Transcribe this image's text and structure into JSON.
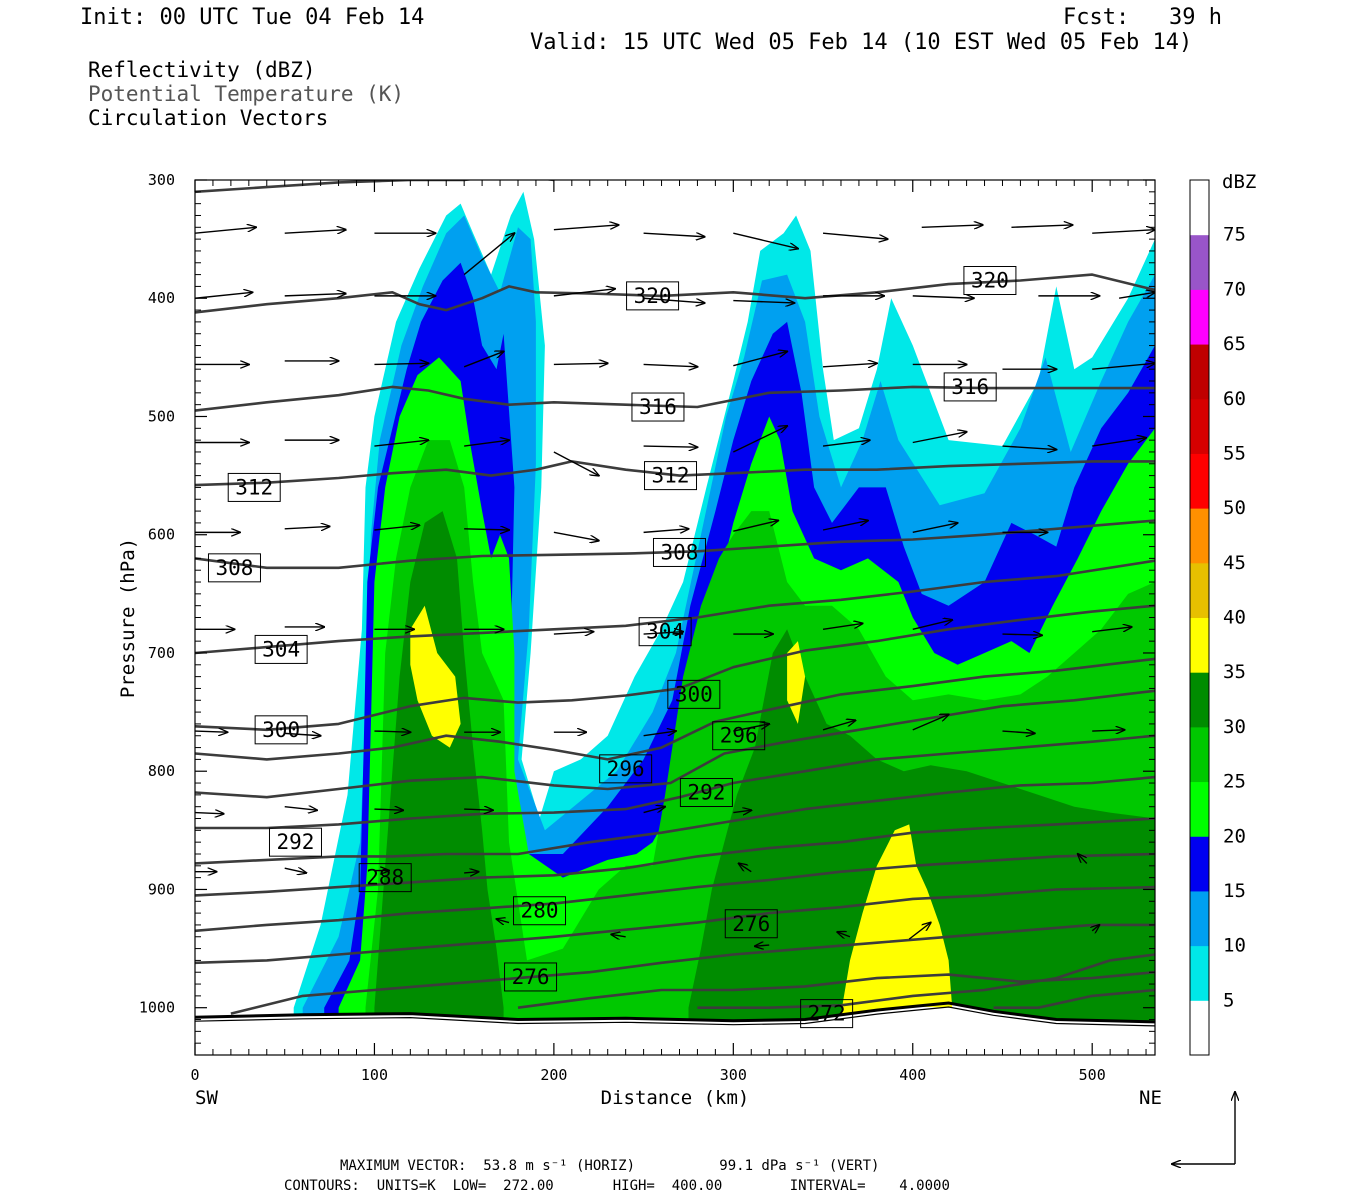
{
  "header": {
    "init": "Init: 00 UTC Tue 04 Feb 14",
    "fcst": "Fcst:   39 h",
    "valid": "Valid: 15 UTC Wed 05 Feb 14 (10 EST Wed 05 Feb 14)"
  },
  "legend": {
    "line1": "Reflectivity (dBZ)",
    "line2": "Potential Temperature (K)",
    "line3": "Circulation Vectors"
  },
  "footer": {
    "max_vector": "MAXIMUM VECTOR:  53.8 m s⁻¹ (HORIZ)          99.1 dPa s⁻¹ (VERT)",
    "contours": "CONTOURS:  UNITS=K  LOW=  272.00       HIGH=  400.00        INTERVAL=    4.0000"
  },
  "chart_data": {
    "type": "heatmap",
    "title": "Reflectivity (dBZ) / Potential Temperature (K) / Circulation Vectors",
    "xlabel": "Distance (km)",
    "ylabel": "Pressure (hPa)",
    "x_ticks": [
      0,
      100,
      200,
      300,
      400,
      500
    ],
    "y_ticks": [
      300,
      400,
      500,
      600,
      700,
      800,
      900,
      1000
    ],
    "xlim": [
      0,
      535
    ],
    "ylim": [
      300,
      1040
    ],
    "y_reversed": true,
    "endpoints": {
      "left": "SW",
      "right": "NE"
    },
    "colorbar": {
      "label": "dBZ",
      "levels": [
        5,
        10,
        15,
        20,
        25,
        30,
        35,
        40,
        45,
        50,
        55,
        60,
        65,
        70,
        75
      ],
      "colors": [
        "#ffffff",
        "#00e8e8",
        "#00a0f0",
        "#0000f0",
        "#00ff00",
        "#00c800",
        "#008c00",
        "#ffff00",
        "#e7c000",
        "#ff9000",
        "#ff0000",
        "#d60000",
        "#c00000",
        "#ff00ff",
        "#9955c9",
        "#ffffff"
      ]
    },
    "contour_labels": [
      {
        "value": "320",
        "x": 255,
        "p": 398
      },
      {
        "value": "320",
        "x": 443,
        "p": 385
      },
      {
        "value": "316",
        "x": 258,
        "p": 492
      },
      {
        "value": "316",
        "x": 432,
        "p": 475
      },
      {
        "value": "312",
        "x": 33,
        "p": 560
      },
      {
        "value": "312",
        "x": 265,
        "p": 550
      },
      {
        "value": "308",
        "x": 22,
        "p": 628
      },
      {
        "value": "308",
        "x": 270,
        "p": 615
      },
      {
        "value": "304",
        "x": 48,
        "p": 697
      },
      {
        "value": "304",
        "x": 262,
        "p": 682
      },
      {
        "value": "300",
        "x": 48,
        "p": 765
      },
      {
        "value": "300",
        "x": 278,
        "p": 735
      },
      {
        "value": "296",
        "x": 240,
        "p": 798
      },
      {
        "value": "296",
        "x": 303,
        "p": 770
      },
      {
        "value": "292",
        "x": 56,
        "p": 860
      },
      {
        "value": "292",
        "x": 285,
        "p": 818
      },
      {
        "value": "288",
        "x": 106,
        "p": 890
      },
      {
        "value": "280",
        "x": 192,
        "p": 918
      },
      {
        "value": "276",
        "x": 187,
        "p": 974
      },
      {
        "value": "276",
        "x": 310,
        "p": 929
      },
      {
        "value": "272",
        "x": 352,
        "p": 1005
      }
    ],
    "theta_levels": [
      272,
      276,
      280,
      284,
      288,
      292,
      296,
      300,
      304,
      308,
      312,
      316,
      320
    ],
    "max_vector": {
      "horiz_m_s": 53.8,
      "vert_dPa_s": 99.1
    },
    "contours": {
      "units": "K",
      "low": 272.0,
      "high": 400.0,
      "interval": 4.0
    }
  }
}
